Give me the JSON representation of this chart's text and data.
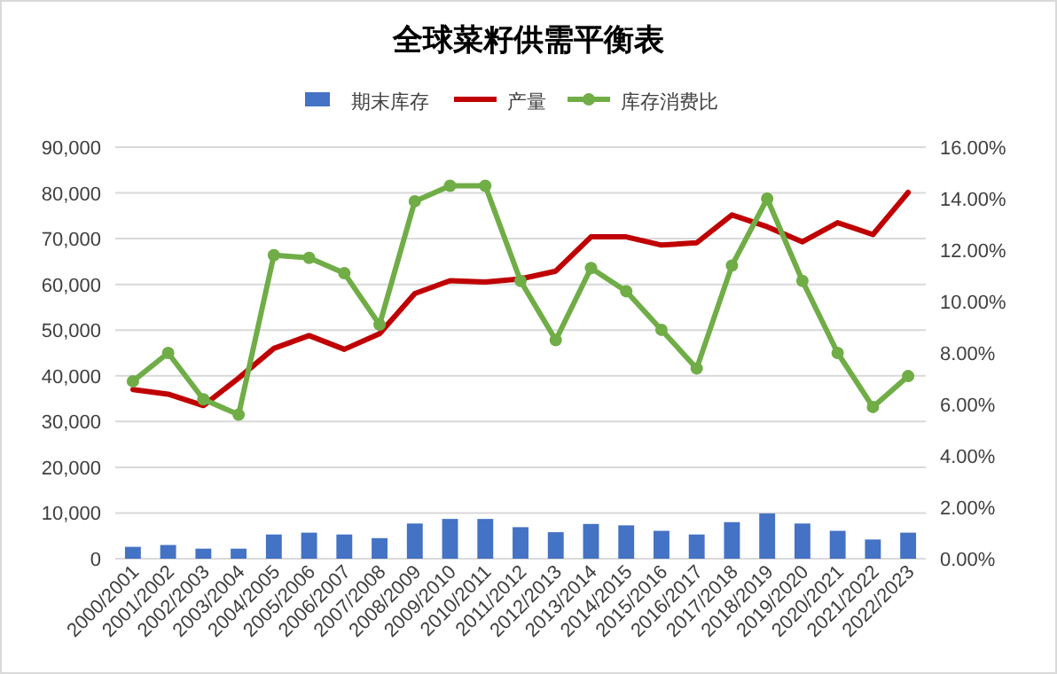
{
  "chart_data": {
    "type": "bar",
    "title": "全球菜籽供需平衡表",
    "categories": [
      "2000/2001",
      "2001/2002",
      "2002/2003",
      "2003/2004",
      "2004/2005",
      "2005/2006",
      "2006/2007",
      "2007/2008",
      "2008/2009",
      "2009/2010",
      "2010/2011",
      "2011/2012",
      "2012/2013",
      "2013/2014",
      "2014/2015",
      "2015/2016",
      "2016/2017",
      "2017/2018",
      "2018/2019",
      "2019/2020",
      "2020/2021",
      "2021/2022",
      "2022/2023"
    ],
    "series": [
      {
        "name": "期末库存",
        "color": "#4472c4",
        "values": [
          2600,
          3000,
          2200,
          2200,
          5300,
          5700,
          5300,
          4500,
          7700,
          8700,
          8700,
          6900,
          5800,
          7600,
          7300,
          6100,
          5300,
          8000,
          9900,
          7700,
          6100,
          4200,
          5700
        ]
      },
      {
        "name": "产量",
        "type": "line",
        "color": "#c00000",
        "marker": "none",
        "values": [
          37000,
          36000,
          33500,
          39500,
          46000,
          48800,
          45800,
          49200,
          58000,
          60800,
          60500,
          61200,
          62900,
          70400,
          70400,
          68600,
          69100,
          75200,
          72600,
          69300,
          73500,
          70900,
          80100
        ]
      },
      {
        "name": "库存消费比",
        "type": "line",
        "axis": "y2",
        "color": "#70ad47",
        "marker": "circle",
        "values": [
          6.9,
          8.0,
          6.2,
          5.6,
          11.8,
          11.7,
          11.1,
          9.1,
          13.9,
          14.5,
          14.5,
          10.8,
          8.5,
          11.3,
          10.4,
          8.9,
          7.4,
          11.4,
          14.0,
          10.8,
          8.0,
          5.9,
          7.1
        ]
      }
    ],
    "ylim": [
      0,
      90000
    ],
    "yticks": [
      {
        "value": 0,
        "label": "0"
      },
      {
        "value": 10000,
        "label": "10,000"
      },
      {
        "value": 20000,
        "label": "20,000"
      },
      {
        "value": 30000,
        "label": "30,000"
      },
      {
        "value": 40000,
        "label": "40,000"
      },
      {
        "value": 50000,
        "label": "50,000"
      },
      {
        "value": 60000,
        "label": "60,000"
      },
      {
        "value": 70000,
        "label": "70,000"
      },
      {
        "value": 80000,
        "label": "80,000"
      },
      {
        "value": 90000,
        "label": "90,000"
      }
    ],
    "y2lim": [
      0,
      16
    ],
    "y2ticks": [
      {
        "value": 0,
        "label": "0.00%"
      },
      {
        "value": 2,
        "label": "2.00%"
      },
      {
        "value": 4,
        "label": "4.00%"
      },
      {
        "value": 6,
        "label": "6.00%"
      },
      {
        "value": 8,
        "label": "8.00%"
      },
      {
        "value": 10,
        "label": "10.00%"
      },
      {
        "value": 12,
        "label": "12.00%"
      },
      {
        "value": 14,
        "label": "14.00%"
      },
      {
        "value": 16,
        "label": "16.00%"
      }
    ],
    "grid": "y",
    "legend": "top"
  }
}
